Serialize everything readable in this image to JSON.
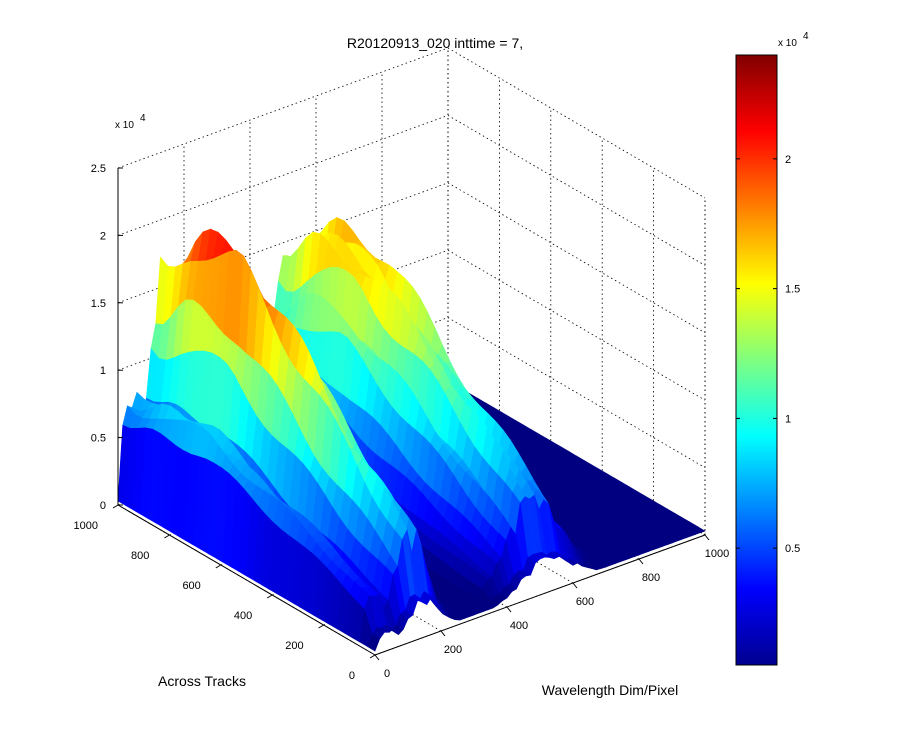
{
  "chart_data": {
    "type": "surface3d",
    "title": "R20120913_020 inttime = 7,",
    "xlabel": "Wavelength Dim/Pixel",
    "ylabel": "Across Tracks",
    "zlabel": "",
    "x_ticks": [
      "0",
      "200",
      "400",
      "600",
      "800",
      "1000"
    ],
    "y_ticks": [
      "0",
      "200",
      "400",
      "600",
      "800",
      "1000"
    ],
    "z_ticks": [
      "0",
      "0.5",
      "1",
      "1.5",
      "2",
      "2.5"
    ],
    "z_multiplier": "x 10",
    "z_multiplier_exp": "4",
    "xlim": [
      0,
      1000
    ],
    "ylim": [
      0,
      1000
    ],
    "zlim": [
      0,
      25000
    ],
    "grid": true,
    "colormap": "jet",
    "colorbar": {
      "ticks": [
        "0.5",
        "1",
        "1.5",
        "2"
      ],
      "multiplier": "x 10",
      "multiplier_exp": "4",
      "range": [
        500,
        24000
      ]
    },
    "ridges": [
      {
        "name": "",
        "x_center": 150,
        "peak_z": 24500
      },
      {
        "name": "",
        "x_center": 560,
        "peak_z": 22000
      },
      {
        "name": "",
        "x_center": 40,
        "peak_z": 13000
      }
    ]
  }
}
